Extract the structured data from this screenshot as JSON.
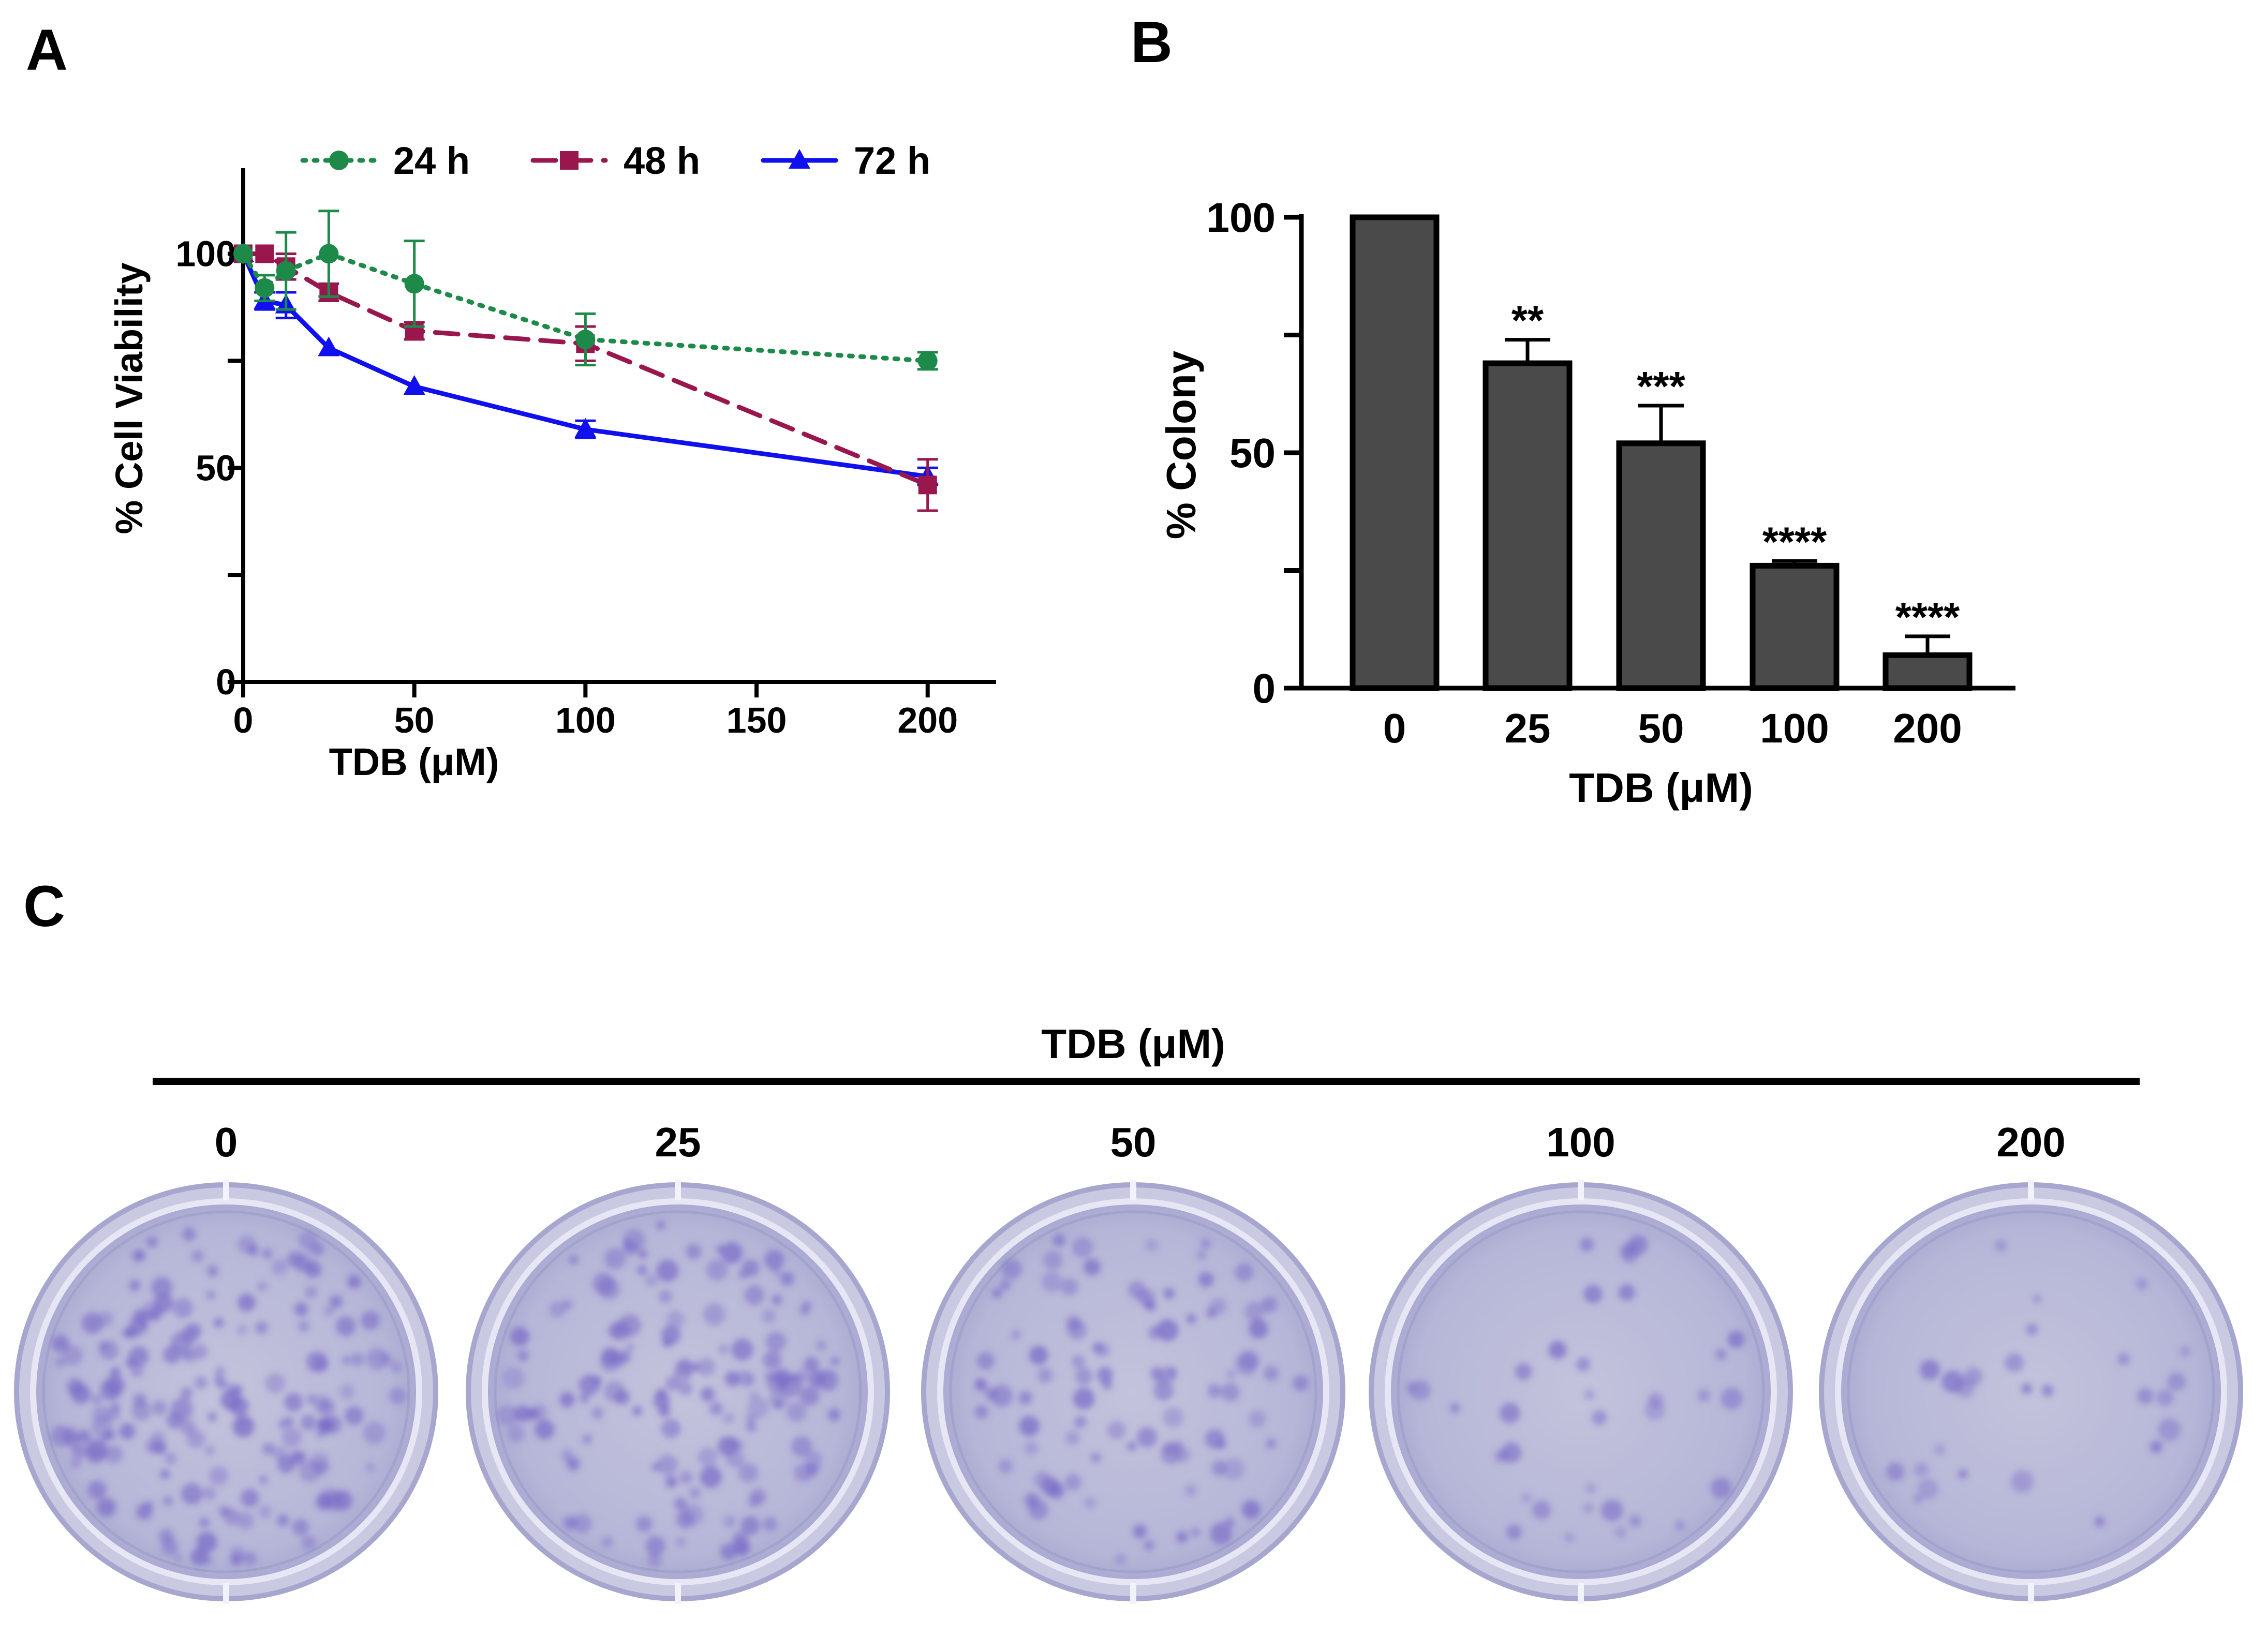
{
  "panels": {
    "a": "A",
    "b": "B",
    "c": "C"
  },
  "chart_data": [
    {
      "type": "line",
      "xlabel": "TDB (μM)",
      "ylabel": "% Cell Viability",
      "xlim": [
        0,
        220
      ],
      "ylim": [
        0,
        120
      ],
      "xticks": [
        0,
        50,
        100,
        150,
        200
      ],
      "yticks_labeled": [
        0,
        50,
        100
      ],
      "yticks_minor": [
        25,
        75
      ],
      "legend_position": "top",
      "series": [
        {
          "name": "24 h",
          "color": "#1e8a49",
          "marker": "circle",
          "line": "dotted",
          "x": [
            0,
            6.25,
            12.5,
            25,
            50,
            100,
            200
          ],
          "y": [
            100,
            92,
            96,
            100,
            93,
            80,
            75
          ],
          "err": [
            1,
            3,
            9,
            10,
            10,
            6,
            2
          ]
        },
        {
          "name": "48 h",
          "color": "#99174d",
          "marker": "square",
          "line": "dashed",
          "x": [
            0,
            6.25,
            12.5,
            25,
            50,
            100,
            200
          ],
          "y": [
            100,
            100,
            97,
            91,
            82,
            79,
            46
          ],
          "err": [
            1,
            1,
            3,
            2,
            2,
            4,
            6
          ]
        },
        {
          "name": "72 h",
          "color": "#1010ee",
          "marker": "triangle",
          "line": "solid",
          "x": [
            0,
            6.25,
            12.5,
            25,
            50,
            100,
            200
          ],
          "y": [
            100,
            89,
            88,
            78,
            69,
            59,
            48
          ],
          "err": [
            1,
            2,
            3,
            1,
            1,
            2,
            2
          ]
        }
      ]
    },
    {
      "type": "bar",
      "xlabel": "TDB (μM)",
      "ylabel": "% Colony",
      "ylim": [
        0,
        100
      ],
      "yticks_labeled": [
        0,
        50,
        100
      ],
      "yticks_minor": [
        25,
        75
      ],
      "categories": [
        "0",
        "25",
        "50",
        "100",
        "200"
      ],
      "values": [
        100,
        69,
        52,
        26,
        7
      ],
      "err": [
        0,
        5,
        8,
        1,
        4
      ],
      "significance": [
        "",
        "**",
        "***",
        "****",
        "****"
      ],
      "bar_color": "#4a4a4a"
    }
  ],
  "colony_panel": {
    "title": "TDB (μM)",
    "doses": [
      "0",
      "25",
      "50",
      "100",
      "200"
    ],
    "dish_intensity": [
      1.0,
      0.8,
      0.55,
      0.2,
      0.15
    ]
  }
}
